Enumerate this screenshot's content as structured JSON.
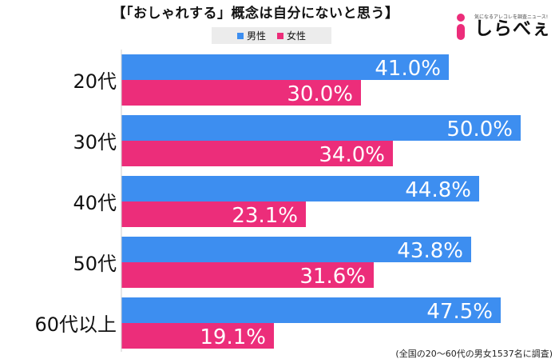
{
  "title": "【「おしゃれする」概念は自分にないと思う】",
  "legend": [
    {
      "name": "男性",
      "color": "#3d8ef0"
    },
    {
      "name": "女性",
      "color": "#ec2d7a"
    }
  ],
  "logo": {
    "tagline": "気になるアレコレを調査ニュース!",
    "wordmark": "しらべぇ",
    "icon": "i-logo-icon",
    "color": "#ec2d7a"
  },
  "chart_data": {
    "type": "bar",
    "orientation": "horizontal",
    "title": "【「おしゃれする」概念は自分にないと思う】",
    "categories": [
      "20代",
      "30代",
      "40代",
      "50代",
      "60代以上"
    ],
    "series": [
      {
        "name": "男性",
        "color": "#3d8ef0",
        "values": [
          41.0,
          50.0,
          44.8,
          43.8,
          47.5
        ]
      },
      {
        "name": "女性",
        "color": "#ec2d7a",
        "values": [
          30.0,
          34.0,
          23.1,
          31.6,
          19.1
        ]
      }
    ],
    "value_labels": [
      [
        "41.0%",
        "50.0%",
        "44.8%",
        "43.8%",
        "47.5%"
      ],
      [
        "30.0%",
        "34.0%",
        "23.1%",
        "31.6%",
        "19.1%"
      ]
    ],
    "xlim": [
      0,
      56
    ],
    "grid": false,
    "legend_position": "top-center"
  },
  "footnote": "(全国の20〜60代の男女1537名に調査)"
}
